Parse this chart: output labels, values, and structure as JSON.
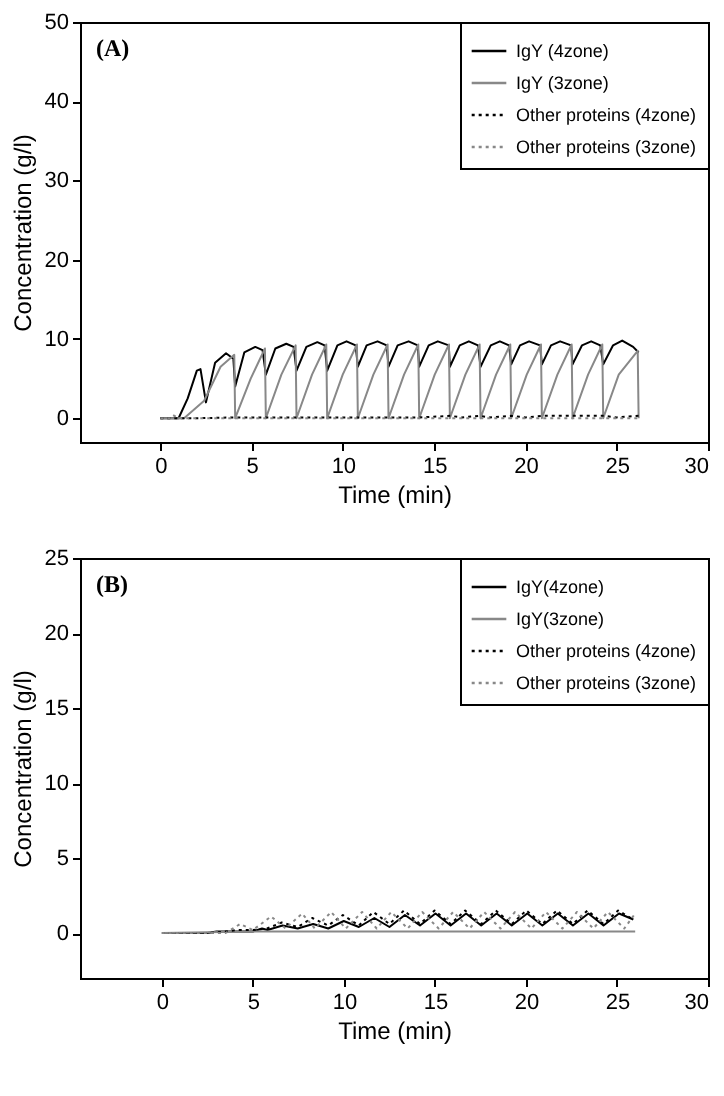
{
  "chart_data": [
    {
      "type": "line",
      "xlabel": "Time (min)",
      "ylabel": "Concentration (g/l)",
      "annotations": [
        "(A)"
      ],
      "xlim": [
        -4.4,
        30
      ],
      "xticks": [
        0,
        5,
        10,
        15,
        20,
        25,
        30
      ],
      "ylim": [
        -3,
        50
      ],
      "yticks": [
        0,
        10,
        20,
        30,
        40,
        50
      ],
      "legend": "top right",
      "series": [
        {
          "name": "IgY (4zone)",
          "color": "#000000",
          "line_style": "solid",
          "x": [
            0,
            1.0,
            1.5,
            2.0,
            2.2,
            2.5,
            3.0,
            3.6,
            4.0,
            4.1,
            4.6,
            5.2,
            5.6,
            5.78,
            6.3,
            6.9,
            7.3,
            7.46,
            8.0,
            8.6,
            9.0,
            9.14,
            9.7,
            10.2,
            10.7,
            10.82,
            11.3,
            11.9,
            12.4,
            12.5,
            13.0,
            13.6,
            14.1,
            14.18,
            14.7,
            15.2,
            15.8,
            15.86,
            16.4,
            16.9,
            17.4,
            17.54,
            18.1,
            18.6,
            19.1,
            19.22,
            19.7,
            20.2,
            20.8,
            20.9,
            21.4,
            21.9,
            22.5,
            22.58,
            23.1,
            23.6,
            24.1,
            24.26,
            24.8,
            25.3,
            25.9,
            26.2
          ],
          "values": [
            0,
            0,
            2.5,
            6.0,
            6.2,
            2.0,
            7.0,
            8.2,
            7.5,
            4.0,
            8.3,
            9.0,
            8.6,
            5.5,
            8.8,
            9.4,
            9.0,
            6.0,
            9.0,
            9.6,
            9.2,
            6.0,
            9.2,
            9.7,
            9.2,
            6.5,
            9.2,
            9.7,
            9.2,
            6.5,
            9.2,
            9.7,
            9.2,
            6.5,
            9.2,
            9.7,
            9.2,
            6.5,
            9.2,
            9.7,
            9.2,
            6.5,
            9.2,
            9.7,
            9.2,
            6.8,
            9.2,
            9.7,
            9.2,
            6.8,
            9.2,
            9.7,
            9.2,
            6.8,
            9.2,
            9.7,
            9.2,
            6.8,
            9.2,
            9.8,
            9.0,
            8.3
          ]
        },
        {
          "name": "IgY (3zone)",
          "color": "#888888",
          "line_style": "solid",
          "x": [
            0,
            1.3,
            2.4,
            3.3,
            4.05,
            4.1,
            4.95,
            5.73,
            5.78,
            6.63,
            7.41,
            7.46,
            8.31,
            9.09,
            9.14,
            9.99,
            10.77,
            10.82,
            11.67,
            12.45,
            12.5,
            13.35,
            14.13,
            14.18,
            15.03,
            15.81,
            15.86,
            16.71,
            17.49,
            17.54,
            18.39,
            19.17,
            19.22,
            20.07,
            20.85,
            20.9,
            21.75,
            22.53,
            22.58,
            23.43,
            24.21,
            24.26,
            25.11,
            26.15,
            26.2
          ],
          "values": [
            0,
            0,
            2.2,
            6.5,
            8.0,
            0,
            5.0,
            8.8,
            0,
            5.5,
            9.2,
            0,
            5.5,
            9.3,
            0,
            5.5,
            9.3,
            0,
            5.5,
            9.3,
            0,
            5.5,
            9.3,
            0,
            5.5,
            9.3,
            0,
            5.5,
            9.3,
            0,
            5.5,
            9.3,
            0,
            5.5,
            9.3,
            0,
            5.5,
            9.3,
            0,
            5.5,
            9.3,
            0,
            5.5,
            8.5,
            0
          ]
        },
        {
          "name": "Other proteins (4zone)",
          "color": "#000000",
          "line_style": "dotted",
          "x": [
            0,
            2,
            4.1,
            5.8,
            7.5,
            9.1,
            10.8,
            12.5,
            14.2,
            15.9,
            16.5,
            17.5,
            18,
            19.2,
            20,
            20.9,
            22.6,
            24.3,
            25,
            26.2
          ],
          "values": [
            0,
            0,
            0.1,
            0.1,
            0.1,
            0.1,
            0.1,
            0.1,
            0.1,
            0.3,
            0.1,
            0.3,
            0.1,
            0.3,
            0.1,
            0.3,
            0.3,
            0.3,
            0.1,
            0.3
          ]
        },
        {
          "name": "Other proteins (3zone)",
          "color": "#888888",
          "line_style": "dotted",
          "x": [
            0,
            0.5,
            0.7,
            1,
            26.2
          ],
          "values": [
            0,
            0,
            0.4,
            0,
            0
          ]
        }
      ]
    },
    {
      "type": "line",
      "xlabel": "Time (min)",
      "ylabel": "Concentration (g/l)",
      "annotations": [
        "(B)"
      ],
      "xlim": [
        -4.5,
        30
      ],
      "xticks": [
        0,
        5,
        10,
        15,
        20,
        25,
        30
      ],
      "ylim": [
        -3,
        25
      ],
      "yticks": [
        0,
        5,
        10,
        15,
        20,
        25
      ],
      "legend": "top right",
      "series": [
        {
          "name": "IgY(4zone)",
          "color": "#000000",
          "line_style": "solid",
          "x": [
            0,
            2.5,
            3,
            4,
            5,
            5.5,
            5.8,
            6.63,
            7.46,
            8.31,
            9.14,
            9.99,
            10.82,
            11.67,
            12.5,
            13.35,
            14.18,
            15.03,
            15.86,
            16.71,
            17.54,
            18.39,
            19.22,
            20.07,
            20.9,
            21.75,
            22.58,
            23.43,
            24.26,
            25.11,
            25.9
          ],
          "values": [
            0,
            0,
            0.1,
            0.1,
            0.1,
            0.3,
            0.2,
            0.5,
            0.3,
            0.6,
            0.3,
            0.8,
            0.4,
            1.0,
            0.4,
            1.2,
            0.5,
            1.3,
            0.5,
            1.3,
            0.5,
            1.3,
            0.5,
            1.3,
            0.5,
            1.3,
            0.5,
            1.3,
            0.5,
            1.3,
            0.9
          ]
        },
        {
          "name": "IgY(3zone)",
          "color": "#888888",
          "line_style": "solid",
          "x": [
            0,
            5,
            10,
            15,
            20,
            26
          ],
          "values": [
            0,
            0.1,
            0.1,
            0.1,
            0.1,
            0.1
          ]
        },
        {
          "name": "Other proteins (4zone)",
          "color": "#000000",
          "line_style": "dotted",
          "x": [
            0,
            2.5,
            3.5,
            4.1,
            5,
            5.78,
            6.58,
            7.46,
            8.26,
            9.14,
            9.94,
            10.82,
            11.62,
            12.5,
            13.3,
            14.18,
            14.98,
            15.86,
            16.66,
            17.54,
            18.34,
            19.22,
            20.02,
            20.9,
            21.7,
            22.58,
            23.38,
            24.26,
            25.06,
            25.9
          ],
          "values": [
            0,
            0,
            0.1,
            0.2,
            0.2,
            0.3,
            0.7,
            0.4,
            1.0,
            0.5,
            1.2,
            0.5,
            1.4,
            0.6,
            1.5,
            0.6,
            1.5,
            0.6,
            1.5,
            0.6,
            1.5,
            0.6,
            1.5,
            0.6,
            1.5,
            0.6,
            1.5,
            0.6,
            1.5,
            0.9
          ]
        },
        {
          "name": "Other proteins (3zone)",
          "color": "#888888",
          "line_style": "dotted",
          "x": [
            0,
            3.5,
            4.3,
            5,
            6,
            6.8,
            7.7,
            8.4,
            9.3,
            10.1,
            11,
            11.8,
            12.6,
            13.5,
            14.3,
            15.2,
            16,
            16.9,
            17.7,
            18.6,
            19.4,
            20.3,
            21.1,
            22,
            22.8,
            23.7,
            24.5,
            25.4,
            26
          ],
          "values": [
            0,
            0,
            0.6,
            0.2,
            1.1,
            0.3,
            1.3,
            0.3,
            1.4,
            0.3,
            1.4,
            0.3,
            1.4,
            0.3,
            1.4,
            0.3,
            1.4,
            0.3,
            1.4,
            0.3,
            1.4,
            0.3,
            1.4,
            0.3,
            1.4,
            0.3,
            1.4,
            0.3,
            1.3
          ]
        }
      ]
    }
  ]
}
